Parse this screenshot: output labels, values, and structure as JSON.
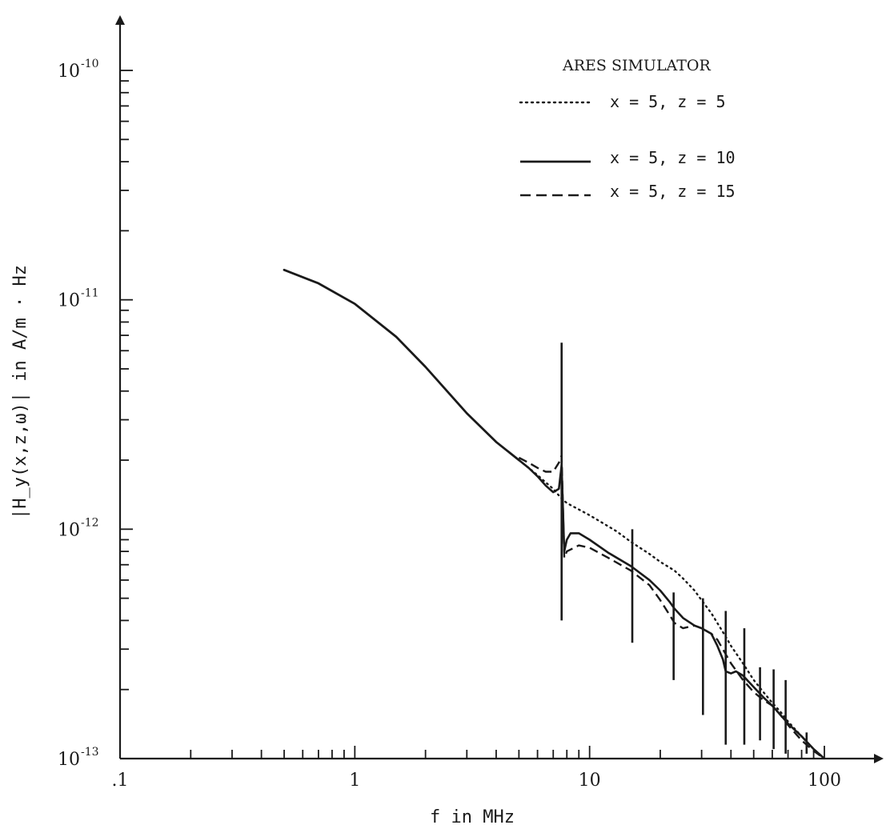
{
  "chart_data": {
    "type": "line",
    "title": "",
    "xlabel": "f in MHz",
    "ylabel": "|H_y(x,z,ω)|   in A/m · Hz",
    "xscale": "log",
    "yscale": "log",
    "xlim": [
      0.1,
      100
    ],
    "ylim": [
      1e-13,
      1e-10
    ],
    "x_tick_labels": [
      ".1",
      "1",
      "10",
      "100"
    ],
    "y_tick_labels": [
      {
        "base": "10",
        "exp": "-13"
      },
      {
        "base": "10",
        "exp": "-12"
      },
      {
        "base": "10",
        "exp": "-11"
      },
      {
        "base": "10",
        "exp": "-10"
      }
    ],
    "grid": false,
    "legend": {
      "title": "ARES SIMULATOR",
      "placement": "top-right",
      "entries": [
        {
          "label": "x = 5,  z = 5",
          "style": "dotted"
        },
        {
          "label": "x = 5,  z = 10",
          "style": "solid"
        },
        {
          "label": "x = 5,  z = 15",
          "style": "dashed"
        }
      ]
    },
    "shared_x": [
      0.5,
      0.7,
      1.0,
      1.5,
      2.0,
      3.0,
      4.0,
      5.0
    ],
    "shared_y": [
      1.35e-11,
      1.18e-11,
      9.6e-12,
      6.9e-12,
      5.1e-12,
      3.2e-12,
      2.4e-12,
      2e-12
    ],
    "series": [
      {
        "name": "x = 5,  z = 5",
        "style": "dotted",
        "x": [
          5.0,
          5.5,
          6.0,
          6.5,
          7.0,
          7.5,
          8.0,
          10,
          13,
          15,
          18,
          20,
          23,
          25,
          28,
          30,
          33,
          35,
          38,
          40,
          45,
          50,
          55,
          60,
          65,
          70,
          80,
          90,
          100
        ],
        "y": [
          2e-12,
          1.85e-12,
          1.72e-12,
          1.6e-12,
          1.5e-12,
          1.38e-12,
          1.3e-12,
          1.15e-12,
          9.8e-13,
          8.8e-13,
          7.8e-13,
          7.2e-13,
          6.6e-13,
          6.1e-13,
          5.4e-13,
          4.9e-13,
          4.3e-13,
          3.9e-13,
          3.4e-13,
          3.1e-13,
          2.6e-13,
          2.2e-13,
          1.95e-13,
          1.75e-13,
          1.6e-13,
          1.45e-13,
          1.25e-13,
          1.1e-13,
          1e-13
        ]
      },
      {
        "name": "x = 5,  z = 10",
        "style": "solid",
        "x": [
          5.0,
          5.5,
          6.0,
          6.5,
          7.0,
          7.4,
          7.6,
          7.8,
          8.0,
          8.3,
          9.0,
          10,
          12,
          15,
          18,
          20,
          22,
          23,
          25,
          28,
          30,
          33,
          35,
          37,
          38,
          40,
          42,
          45,
          50,
          55,
          60,
          65,
          70,
          80,
          90,
          100
        ],
        "y": [
          2e-12,
          1.85e-12,
          1.7e-12,
          1.55e-12,
          1.45e-12,
          1.5e-12,
          1.9e-12,
          8e-13,
          9e-13,
          9.6e-13,
          9.6e-13,
          9e-13,
          7.9e-13,
          6.9e-13,
          6e-13,
          5.4e-13,
          4.8e-13,
          4.5e-13,
          4.1e-13,
          3.8e-13,
          3.7e-13,
          3.5e-13,
          3.1e-13,
          2.7e-13,
          2.4e-13,
          2.35e-13,
          2.4e-13,
          2.3e-13,
          2.05e-13,
          1.85e-13,
          1.7e-13,
          1.55e-13,
          1.42e-13,
          1.25e-13,
          1.1e-13,
          1e-13
        ]
      },
      {
        "name": "x = 5,  z = 15",
        "style": "dashed",
        "x": [
          5.0,
          5.5,
          6.0,
          6.5,
          7.0,
          7.4,
          7.6,
          7.8,
          8.0,
          9.0,
          10,
          12,
          15,
          18,
          20,
          22,
          23,
          25,
          28,
          30,
          33,
          35,
          40,
          45,
          50,
          55,
          60,
          65,
          70,
          80,
          90,
          100
        ],
        "y": [
          2.05e-12,
          1.95e-12,
          1.85e-12,
          1.78e-12,
          1.78e-12,
          1.95e-12,
          2.1e-12,
          7.5e-13,
          8e-13,
          8.5e-13,
          8.3e-13,
          7.5e-13,
          6.6e-13,
          5.7e-13,
          4.9e-13,
          4.2e-13,
          3.9e-13,
          3.7e-13,
          3.8e-13,
          3.7e-13,
          3.5e-13,
          3.3e-13,
          2.6e-13,
          2.2e-13,
          1.95e-13,
          1.8e-13,
          1.7e-13,
          1.55e-13,
          1.4e-13,
          1.2e-13,
          1.08e-13,
          1e-13
        ]
      }
    ],
    "resonance_spikes": [
      {
        "f": 7.6,
        "y_high": 6.5e-12,
        "y_low": 4e-13
      },
      {
        "f": 15.2,
        "y_high": 1e-12,
        "y_low": 3.2e-13
      },
      {
        "f": 22.8,
        "y_high": 5.3e-13,
        "y_low": 2.2e-13
      },
      {
        "f": 30.4,
        "y_high": 5e-13,
        "y_low": 1.55e-13
      },
      {
        "f": 38.0,
        "y_high": 4.4e-13,
        "y_low": 1.15e-13
      },
      {
        "f": 45.6,
        "y_high": 3.7e-13,
        "y_low": 1.15e-13
      },
      {
        "f": 53.2,
        "y_high": 2.5e-13,
        "y_low": 1.2e-13
      },
      {
        "f": 60.8,
        "y_high": 2.45e-13,
        "y_low": 1.1e-13
      },
      {
        "f": 68.4,
        "y_high": 2.2e-13,
        "y_low": 1.05e-13
      },
      {
        "f": 84.0,
        "y_high": 1.3e-13,
        "y_low": 1.05e-13
      }
    ]
  }
}
